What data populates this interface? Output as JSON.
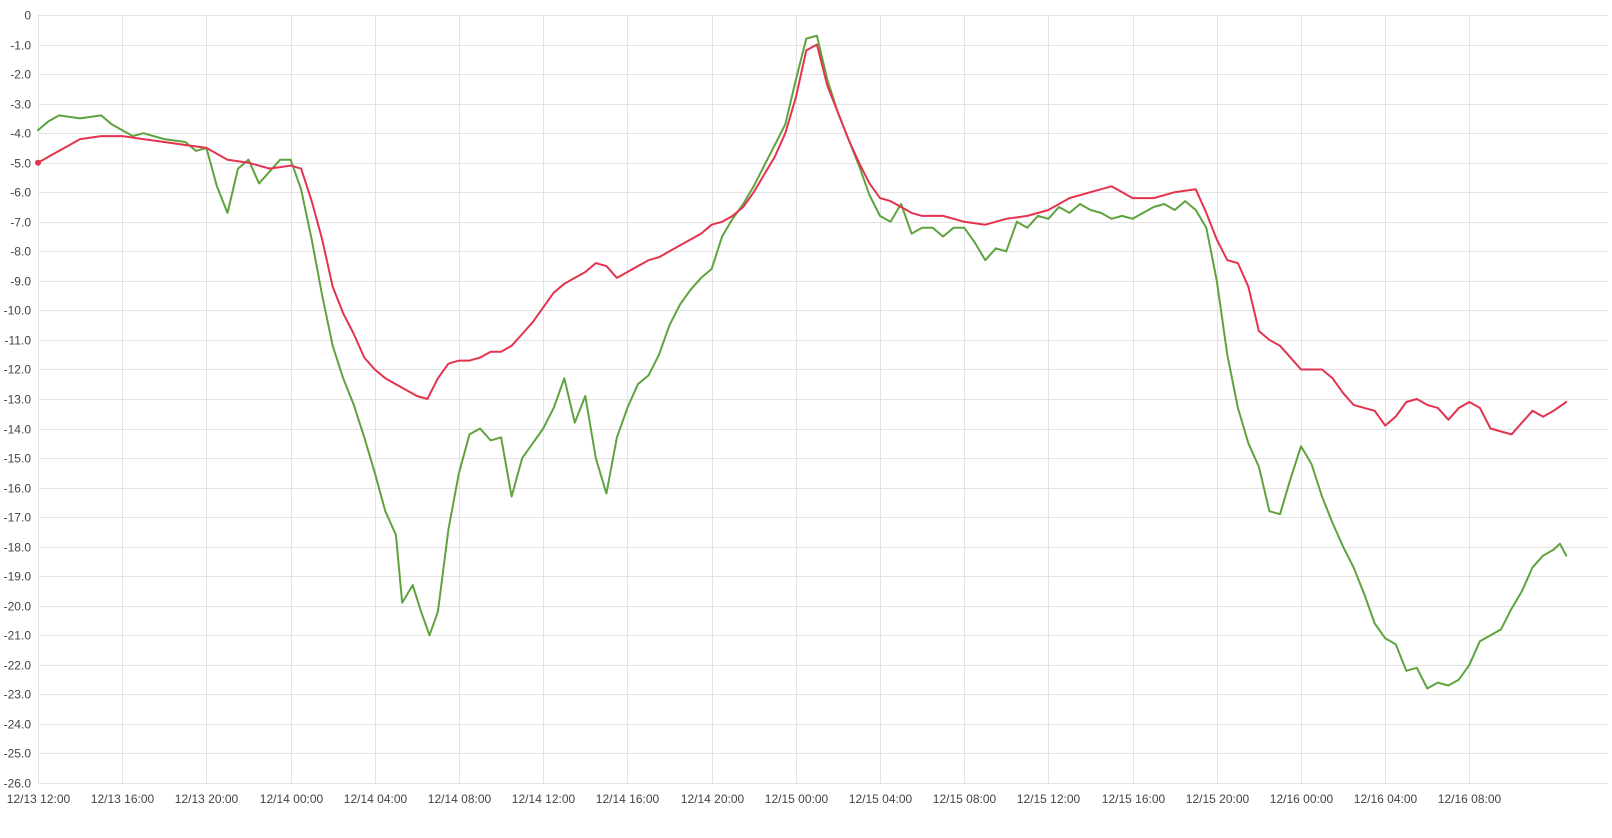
{
  "chart_data": {
    "type": "line",
    "title": "",
    "xlabel": "",
    "ylabel": "",
    "grid": true,
    "legend": "none",
    "ylim": [
      -26,
      0
    ],
    "y_ticks": [
      "0",
      "-1.0",
      "-2.0",
      "-3.0",
      "-4.0",
      "-5.0",
      "-6.0",
      "-7.0",
      "-8.0",
      "-9.0",
      "-10.0",
      "-11.0",
      "-12.0",
      "-13.0",
      "-14.0",
      "-15.0",
      "-16.0",
      "-17.0",
      "-18.0",
      "-19.0",
      "-20.0",
      "-21.0",
      "-22.0",
      "-23.0",
      "-24.0",
      "-25.0",
      "-26.0"
    ],
    "x_range": [
      "2023-12-13 12:00",
      "2023-12-16 17:40"
    ],
    "x_ticks": [
      "12/13 12:00",
      "12/13 16:00",
      "12/13 20:00",
      "12/14 00:00",
      "12/14 04:00",
      "12/14 08:00",
      "12/14 12:00",
      "12/14 16:00",
      "12/14 20:00",
      "12/15 00:00",
      "12/15 04:00",
      "12/15 08:00",
      "12/15 12:00",
      "12/15 16:00",
      "12/15 20:00",
      "12/16 00:00",
      "12/16 04:00",
      "12/16 08:00"
    ],
    "x_tick_hours": [
      0,
      4,
      8,
      12,
      16,
      20,
      24,
      28,
      32,
      36,
      40,
      44,
      48,
      52,
      56,
      60,
      64,
      68
    ],
    "series": [
      {
        "color": "#5ea33e",
        "points": [
          [
            0,
            -3.9
          ],
          [
            0.5,
            -3.6
          ],
          [
            1.0,
            -3.4
          ],
          [
            2.0,
            -3.5
          ],
          [
            3.0,
            -3.4
          ],
          [
            3.5,
            -3.7
          ],
          [
            4.0,
            -3.9
          ],
          [
            4.5,
            -4.1
          ],
          [
            5.0,
            -4.0
          ],
          [
            6.0,
            -4.2
          ],
          [
            7.0,
            -4.3
          ],
          [
            7.5,
            -4.6
          ],
          [
            8.0,
            -4.5
          ],
          [
            8.5,
            -5.8
          ],
          [
            9.0,
            -6.7
          ],
          [
            9.5,
            -5.2
          ],
          [
            10.0,
            -4.9
          ],
          [
            10.5,
            -5.7
          ],
          [
            11.0,
            -5.3
          ],
          [
            11.5,
            -4.9
          ],
          [
            12.0,
            -4.9
          ],
          [
            12.5,
            -5.9
          ],
          [
            13.0,
            -7.6
          ],
          [
            13.5,
            -9.5
          ],
          [
            14.0,
            -11.2
          ],
          [
            14.5,
            -12.3
          ],
          [
            15.0,
            -13.2
          ],
          [
            15.5,
            -14.3
          ],
          [
            16.0,
            -15.5
          ],
          [
            16.5,
            -16.8
          ],
          [
            17.0,
            -17.6
          ],
          [
            17.3,
            -19.9
          ],
          [
            17.8,
            -19.3
          ],
          [
            18.2,
            -20.2
          ],
          [
            18.6,
            -21.0
          ],
          [
            19.0,
            -20.2
          ],
          [
            19.5,
            -17.4
          ],
          [
            20.0,
            -15.5
          ],
          [
            20.5,
            -14.2
          ],
          [
            21.0,
            -14.0
          ],
          [
            21.5,
            -14.4
          ],
          [
            22.0,
            -14.3
          ],
          [
            22.5,
            -16.3
          ],
          [
            23.0,
            -15.0
          ],
          [
            23.5,
            -14.5
          ],
          [
            24.0,
            -14.0
          ],
          [
            24.5,
            -13.3
          ],
          [
            25.0,
            -12.3
          ],
          [
            25.5,
            -13.8
          ],
          [
            26.0,
            -12.9
          ],
          [
            26.5,
            -15.0
          ],
          [
            27.0,
            -16.2
          ],
          [
            27.5,
            -14.3
          ],
          [
            28.0,
            -13.3
          ],
          [
            28.5,
            -12.5
          ],
          [
            29.0,
            -12.2
          ],
          [
            29.5,
            -11.5
          ],
          [
            30.0,
            -10.5
          ],
          [
            30.5,
            -9.8
          ],
          [
            31.0,
            -9.3
          ],
          [
            31.5,
            -8.9
          ],
          [
            32.0,
            -8.6
          ],
          [
            32.5,
            -7.5
          ],
          [
            33.0,
            -6.9
          ],
          [
            33.5,
            -6.4
          ],
          [
            34.0,
            -5.8
          ],
          [
            34.5,
            -5.1
          ],
          [
            35.0,
            -4.4
          ],
          [
            35.5,
            -3.7
          ],
          [
            36.0,
            -2.2
          ],
          [
            36.5,
            -0.8
          ],
          [
            37.0,
            -0.7
          ],
          [
            37.5,
            -2.2
          ],
          [
            38.0,
            -3.3
          ],
          [
            38.5,
            -4.2
          ],
          [
            39.0,
            -5.1
          ],
          [
            39.5,
            -6.1
          ],
          [
            40.0,
            -6.8
          ],
          [
            40.5,
            -7.0
          ],
          [
            41.0,
            -6.4
          ],
          [
            41.5,
            -7.4
          ],
          [
            42.0,
            -7.2
          ],
          [
            42.5,
            -7.2
          ],
          [
            43.0,
            -7.5
          ],
          [
            43.5,
            -7.2
          ],
          [
            44.0,
            -7.2
          ],
          [
            44.5,
            -7.7
          ],
          [
            45.0,
            -8.3
          ],
          [
            45.5,
            -7.9
          ],
          [
            46.0,
            -8.0
          ],
          [
            46.5,
            -7.0
          ],
          [
            47.0,
            -7.2
          ],
          [
            47.5,
            -6.8
          ],
          [
            48.0,
            -6.9
          ],
          [
            48.5,
            -6.5
          ],
          [
            49.0,
            -6.7
          ],
          [
            49.5,
            -6.4
          ],
          [
            50.0,
            -6.6
          ],
          [
            50.5,
            -6.7
          ],
          [
            51.0,
            -6.9
          ],
          [
            51.5,
            -6.8
          ],
          [
            52.0,
            -6.9
          ],
          [
            52.5,
            -6.7
          ],
          [
            53.0,
            -6.5
          ],
          [
            53.5,
            -6.4
          ],
          [
            54.0,
            -6.6
          ],
          [
            54.5,
            -6.3
          ],
          [
            55.0,
            -6.6
          ],
          [
            55.5,
            -7.2
          ],
          [
            56.0,
            -9.0
          ],
          [
            56.5,
            -11.5
          ],
          [
            57.0,
            -13.3
          ],
          [
            57.5,
            -14.5
          ],
          [
            58.0,
            -15.3
          ],
          [
            58.5,
            -16.8
          ],
          [
            59.0,
            -16.9
          ],
          [
            59.5,
            -15.7
          ],
          [
            60.0,
            -14.6
          ],
          [
            60.5,
            -15.2
          ],
          [
            61.0,
            -16.3
          ],
          [
            61.5,
            -17.2
          ],
          [
            62.0,
            -18.0
          ],
          [
            62.5,
            -18.7
          ],
          [
            63.0,
            -19.6
          ],
          [
            63.5,
            -20.6
          ],
          [
            64.0,
            -21.1
          ],
          [
            64.5,
            -21.3
          ],
          [
            65.0,
            -22.2
          ],
          [
            65.5,
            -22.1
          ],
          [
            66.0,
            -22.8
          ],
          [
            66.5,
            -22.6
          ],
          [
            67.0,
            -22.7
          ],
          [
            67.5,
            -22.5
          ],
          [
            68.0,
            -22.0
          ],
          [
            68.5,
            -21.2
          ],
          [
            69.0,
            -21.0
          ],
          [
            69.5,
            -20.8
          ],
          [
            70.0,
            -20.1
          ],
          [
            70.5,
            -19.5
          ],
          [
            71.0,
            -18.7
          ],
          [
            71.5,
            -18.3
          ],
          [
            72.0,
            -18.1
          ],
          [
            72.3,
            -17.9
          ],
          [
            72.6,
            -18.3
          ]
        ]
      },
      {
        "color": "#e4334f",
        "points": [
          [
            0,
            -5.0
          ],
          [
            0.5,
            -4.8
          ],
          [
            1.0,
            -4.6
          ],
          [
            1.5,
            -4.4
          ],
          [
            2.0,
            -4.2
          ],
          [
            3.0,
            -4.1
          ],
          [
            4.0,
            -4.1
          ],
          [
            5.0,
            -4.2
          ],
          [
            6.0,
            -4.3
          ],
          [
            7.0,
            -4.4
          ],
          [
            8.0,
            -4.5
          ],
          [
            9.0,
            -4.9
          ],
          [
            10.0,
            -5.0
          ],
          [
            11.0,
            -5.2
          ],
          [
            12.0,
            -5.1
          ],
          [
            12.5,
            -5.2
          ],
          [
            13.0,
            -6.3
          ],
          [
            13.5,
            -7.6
          ],
          [
            14.0,
            -9.2
          ],
          [
            14.5,
            -10.1
          ],
          [
            15.0,
            -10.8
          ],
          [
            15.5,
            -11.6
          ],
          [
            16.0,
            -12.0
          ],
          [
            16.5,
            -12.3
          ],
          [
            17.0,
            -12.5
          ],
          [
            17.5,
            -12.7
          ],
          [
            18.0,
            -12.9
          ],
          [
            18.5,
            -13.0
          ],
          [
            19.0,
            -12.3
          ],
          [
            19.5,
            -11.8
          ],
          [
            20.0,
            -11.7
          ],
          [
            20.5,
            -11.7
          ],
          [
            21.0,
            -11.6
          ],
          [
            21.5,
            -11.4
          ],
          [
            22.0,
            -11.4
          ],
          [
            22.5,
            -11.2
          ],
          [
            23.0,
            -10.8
          ],
          [
            23.5,
            -10.4
          ],
          [
            24.0,
            -9.9
          ],
          [
            24.5,
            -9.4
          ],
          [
            25.0,
            -9.1
          ],
          [
            25.5,
            -8.9
          ],
          [
            26.0,
            -8.7
          ],
          [
            26.5,
            -8.4
          ],
          [
            27.0,
            -8.5
          ],
          [
            27.5,
            -8.9
          ],
          [
            28.0,
            -8.7
          ],
          [
            28.5,
            -8.5
          ],
          [
            29.0,
            -8.3
          ],
          [
            29.5,
            -8.2
          ],
          [
            30.0,
            -8.0
          ],
          [
            30.5,
            -7.8
          ],
          [
            31.0,
            -7.6
          ],
          [
            31.5,
            -7.4
          ],
          [
            32.0,
            -7.1
          ],
          [
            32.5,
            -7.0
          ],
          [
            33.0,
            -6.8
          ],
          [
            33.5,
            -6.5
          ],
          [
            34.0,
            -6.0
          ],
          [
            34.5,
            -5.4
          ],
          [
            35.0,
            -4.8
          ],
          [
            35.5,
            -4.0
          ],
          [
            36.0,
            -2.8
          ],
          [
            36.5,
            -1.2
          ],
          [
            37.0,
            -1.0
          ],
          [
            37.5,
            -2.4
          ],
          [
            38.0,
            -3.3
          ],
          [
            38.5,
            -4.2
          ],
          [
            39.0,
            -5.0
          ],
          [
            39.5,
            -5.7
          ],
          [
            40.0,
            -6.2
          ],
          [
            40.5,
            -6.3
          ],
          [
            41.0,
            -6.5
          ],
          [
            41.5,
            -6.7
          ],
          [
            42.0,
            -6.8
          ],
          [
            43.0,
            -6.8
          ],
          [
            44.0,
            -7.0
          ],
          [
            45.0,
            -7.1
          ],
          [
            46.0,
            -6.9
          ],
          [
            47.0,
            -6.8
          ],
          [
            48.0,
            -6.6
          ],
          [
            49.0,
            -6.2
          ],
          [
            50.0,
            -6.0
          ],
          [
            51.0,
            -5.8
          ],
          [
            52.0,
            -6.2
          ],
          [
            53.0,
            -6.2
          ],
          [
            54.0,
            -6.0
          ],
          [
            55.0,
            -5.9
          ],
          [
            55.5,
            -6.7
          ],
          [
            56.0,
            -7.6
          ],
          [
            56.5,
            -8.3
          ],
          [
            57.0,
            -8.4
          ],
          [
            57.5,
            -9.2
          ],
          [
            58.0,
            -10.7
          ],
          [
            58.5,
            -11.0
          ],
          [
            59.0,
            -11.2
          ],
          [
            59.5,
            -11.6
          ],
          [
            60.0,
            -12.0
          ],
          [
            61.0,
            -12.0
          ],
          [
            61.5,
            -12.3
          ],
          [
            62.0,
            -12.8
          ],
          [
            62.5,
            -13.2
          ],
          [
            63.0,
            -13.3
          ],
          [
            63.5,
            -13.4
          ],
          [
            64.0,
            -13.9
          ],
          [
            64.5,
            -13.6
          ],
          [
            65.0,
            -13.1
          ],
          [
            65.5,
            -13.0
          ],
          [
            66.0,
            -13.2
          ],
          [
            66.5,
            -13.3
          ],
          [
            67.0,
            -13.7
          ],
          [
            67.5,
            -13.3
          ],
          [
            68.0,
            -13.1
          ],
          [
            68.5,
            -13.3
          ],
          [
            69.0,
            -14.0
          ],
          [
            69.5,
            -14.1
          ],
          [
            70.0,
            -14.2
          ],
          [
            70.5,
            -13.8
          ],
          [
            71.0,
            -13.4
          ],
          [
            71.5,
            -13.6
          ],
          [
            72.0,
            -13.4
          ],
          [
            72.6,
            -13.1
          ]
        ]
      }
    ]
  }
}
